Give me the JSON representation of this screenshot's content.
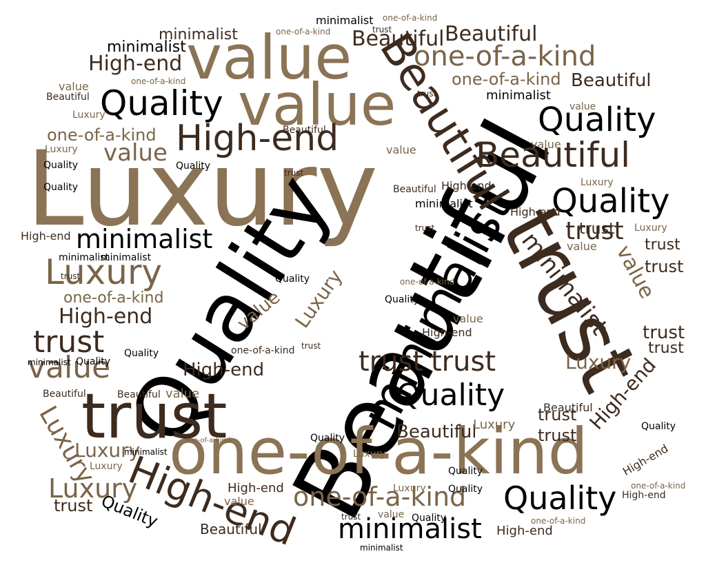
{
  "words": {
    "luxury": "Luxury",
    "beautiful": "Beautiful",
    "quality": "Quality",
    "minimalist": "minimalist",
    "trust": "trust",
    "one_of_a_kind": "one-of-a-kind",
    "value": "value",
    "high_end": "High-end"
  },
  "palette": {
    "black": "#000000",
    "dark_brown": "#3d2b1f",
    "brown": "#7a6448",
    "tan": "#8b7355",
    "background": "#ffffff"
  }
}
